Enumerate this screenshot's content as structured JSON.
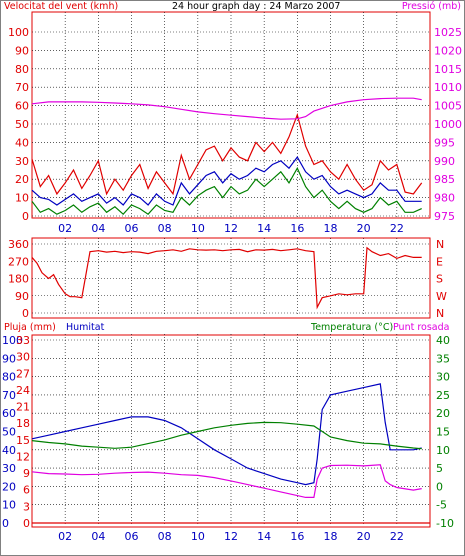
{
  "header": {
    "left_title": "Velocitat del vent (kmh)",
    "center_title": "24 hour graph day : 24 Marzo 2007",
    "right_title": "Pressió (mb)",
    "legend_rain": "Pluja (mm)",
    "legend_humidity": "Humitat",
    "legend_temperature": "Temperatura (°C)",
    "legend_dewpoint": "Punt rosada"
  },
  "colors": {
    "wind_gust": "#e00000",
    "wind_avg": "#0000c0",
    "wind_low": "#008000",
    "pressure": "#e000e0",
    "direction": "#e00000",
    "humidity": "#0000c0",
    "temperature": "#008000",
    "dewpoint": "#e000e0",
    "rain": "#e00000",
    "grid": "#000000",
    "frame": "#808080"
  },
  "chart_data": [
    {
      "type": "line",
      "name": "wind_pressure",
      "x_ticks": [
        "02",
        "04",
        "06",
        "08",
        "10",
        "12",
        "14",
        "16",
        "18",
        "20",
        "22"
      ],
      "x_range_hours": [
        0,
        24
      ],
      "ylim_left": [
        0,
        100
      ],
      "yticks_left": [
        "0",
        "10",
        "20",
        "30",
        "40",
        "50",
        "60",
        "70",
        "80",
        "90",
        "100"
      ],
      "ylim_right": [
        975,
        1025
      ],
      "yticks_right": [
        "975",
        "980",
        "985",
        "990",
        "995",
        "1000",
        "1005",
        "1010",
        "1015",
        "1020",
        "1025"
      ],
      "series": [
        {
          "key": "gust",
          "x": [
            0.0,
            0.5,
            1.0,
            1.5,
            2.0,
            2.5,
            3.0,
            3.5,
            4.0,
            4.5,
            5.0,
            5.5,
            6.0,
            6.5,
            7.0,
            7.5,
            8.0,
            8.5,
            9.0,
            9.5,
            10.0,
            10.5,
            11.0,
            11.5,
            12.0,
            12.5,
            13.0,
            13.5,
            14.0,
            14.5,
            15.0,
            15.5,
            16.0,
            16.5,
            17.0,
            17.5,
            18.0,
            18.5,
            19.0,
            19.5,
            20.0,
            20.5,
            21.0,
            21.5,
            22.0,
            22.5,
            23.0,
            23.5
          ],
          "values": [
            31,
            16,
            22,
            12,
            18,
            25,
            15,
            22,
            30,
            12,
            20,
            14,
            22,
            28,
            15,
            24,
            18,
            12,
            33,
            20,
            28,
            36,
            38,
            30,
            37,
            32,
            30,
            40,
            35,
            40,
            34,
            43,
            55,
            38,
            28,
            30,
            24,
            20,
            28,
            20,
            14,
            17,
            30,
            25,
            28,
            13,
            12,
            18
          ]
        },
        {
          "key": "avg",
          "x": [
            0.0,
            0.5,
            1.0,
            1.5,
            2.0,
            2.5,
            3.0,
            3.5,
            4.0,
            4.5,
            5.0,
            5.5,
            6.0,
            6.5,
            7.0,
            7.5,
            8.0,
            8.5,
            9.0,
            9.5,
            10.0,
            10.5,
            11.0,
            11.5,
            12.0,
            12.5,
            13.0,
            13.5,
            14.0,
            14.5,
            15.0,
            15.5,
            16.0,
            16.5,
            17.0,
            17.5,
            18.0,
            18.5,
            19.0,
            19.5,
            20.0,
            20.5,
            21.0,
            21.5,
            22.0,
            22.5,
            23.0,
            23.5
          ],
          "values": [
            14,
            10,
            9,
            6,
            9,
            12,
            8,
            10,
            12,
            7,
            10,
            6,
            12,
            10,
            6,
            12,
            8,
            6,
            18,
            12,
            17,
            22,
            24,
            18,
            23,
            20,
            22,
            26,
            24,
            28,
            30,
            26,
            32,
            24,
            20,
            22,
            16,
            12,
            14,
            12,
            10,
            12,
            18,
            14,
            14,
            8,
            8,
            8
          ]
        },
        {
          "key": "low",
          "x": [
            0.0,
            0.5,
            1.0,
            1.5,
            2.0,
            2.5,
            3.0,
            3.5,
            4.0,
            4.5,
            5.0,
            5.5,
            6.0,
            6.5,
            7.0,
            7.5,
            8.0,
            8.5,
            9.0,
            9.5,
            10.0,
            10.5,
            11.0,
            11.5,
            12.0,
            12.5,
            13.0,
            13.5,
            14.0,
            14.5,
            15.0,
            15.5,
            16.0,
            16.5,
            17.0,
            17.5,
            18.0,
            18.5,
            19.0,
            19.5,
            20.0,
            20.5,
            21.0,
            21.5,
            22.0,
            22.5,
            23.0,
            23.5
          ],
          "values": [
            8,
            2,
            4,
            1,
            3,
            6,
            2,
            5,
            7,
            2,
            5,
            1,
            6,
            4,
            1,
            6,
            3,
            2,
            10,
            6,
            11,
            14,
            16,
            10,
            16,
            12,
            14,
            20,
            16,
            20,
            24,
            18,
            26,
            16,
            10,
            14,
            8,
            4,
            8,
            4,
            2,
            4,
            10,
            6,
            8,
            2,
            2,
            4
          ]
        },
        {
          "key": "pressure",
          "x": [
            0.0,
            1.0,
            2.0,
            3.0,
            4.0,
            5.0,
            6.0,
            7.0,
            8.0,
            9.0,
            10.0,
            11.0,
            12.0,
            13.0,
            14.0,
            15.0,
            16.0,
            16.5,
            17.0,
            18.0,
            19.0,
            20.0,
            21.0,
            22.0,
            23.0,
            23.5
          ],
          "values": [
            1005.5,
            1006.0,
            1006.0,
            1006.0,
            1005.9,
            1005.7,
            1005.5,
            1005.2,
            1004.7,
            1004.0,
            1003.3,
            1002.8,
            1002.4,
            1002.0,
            1001.6,
            1001.3,
            1001.4,
            1002.0,
            1003.5,
            1005.0,
            1006.0,
            1006.6,
            1006.9,
            1007.0,
            1007.0,
            1006.6
          ]
        }
      ]
    },
    {
      "type": "line",
      "name": "wind_direction",
      "x_ticks": [
        "02",
        "04",
        "06",
        "08",
        "10",
        "12",
        "14",
        "16",
        "18",
        "20",
        "22"
      ],
      "x_range_hours": [
        0,
        24
      ],
      "ylim": [
        0,
        360
      ],
      "yticks_left": [
        "0",
        "90",
        "180",
        "270",
        "360"
      ],
      "yticks_right": [
        "N",
        "W",
        "S",
        "E",
        "N"
      ],
      "series": [
        {
          "key": "direction",
          "x": [
            0.0,
            0.3,
            0.6,
            1.0,
            1.3,
            1.6,
            2.0,
            2.3,
            2.6,
            3.0,
            3.5,
            4.0,
            4.5,
            5.0,
            5.5,
            6.0,
            6.5,
            7.0,
            7.5,
            8.0,
            8.5,
            9.0,
            9.5,
            10.0,
            10.5,
            11.0,
            11.5,
            12.0,
            12.5,
            13.0,
            13.5,
            14.0,
            14.5,
            15.0,
            15.5,
            16.0,
            16.5,
            17.0,
            17.2,
            17.5,
            18.0,
            18.5,
            19.0,
            19.5,
            20.0,
            20.2,
            20.5,
            21.0,
            21.5,
            22.0,
            22.5,
            23.0,
            23.5
          ],
          "values": [
            290,
            260,
            210,
            180,
            200,
            150,
            100,
            85,
            85,
            80,
            320,
            325,
            318,
            322,
            315,
            320,
            318,
            310,
            322,
            325,
            330,
            322,
            335,
            330,
            328,
            330,
            325,
            330,
            332,
            320,
            330,
            328,
            332,
            325,
            330,
            335,
            325,
            320,
            30,
            80,
            90,
            100,
            95,
            100,
            100,
            340,
            320,
            300,
            310,
            285,
            300,
            290,
            290
          ]
        }
      ]
    },
    {
      "type": "line",
      "name": "humidity_temperature",
      "x_ticks": [
        "02",
        "04",
        "06",
        "08",
        "10",
        "12",
        "14",
        "16",
        "18",
        "20",
        "22"
      ],
      "x_range_hours": [
        0,
        24
      ],
      "ylim_rain": [
        0,
        33
      ],
      "yticks_rain": [
        "0",
        "3",
        "6",
        "9",
        "12",
        "15",
        "18",
        "21",
        "24",
        "27",
        "30",
        "33"
      ],
      "ylim_humidity": [
        0,
        100
      ],
      "yticks_humidity": [
        "0",
        "10",
        "20",
        "30",
        "40",
        "50",
        "60",
        "70",
        "80",
        "90",
        "100"
      ],
      "ylim_temp": [
        -10,
        40
      ],
      "yticks_temp": [
        "-10",
        "-5",
        "0",
        "5",
        "10",
        "15",
        "20",
        "25",
        "30",
        "35",
        "40"
      ],
      "series": [
        {
          "key": "humidity",
          "x": [
            0.0,
            1.0,
            2.0,
            3.0,
            4.0,
            5.0,
            6.0,
            7.0,
            8.0,
            9.0,
            10.0,
            11.0,
            12.0,
            13.0,
            14.0,
            15.0,
            16.0,
            16.5,
            17.0,
            17.2,
            17.5,
            18.0,
            19.0,
            20.0,
            21.0,
            21.3,
            21.6,
            22.0,
            23.0,
            23.5
          ],
          "values": [
            46,
            48,
            50,
            52,
            54,
            56,
            58,
            58,
            56,
            52,
            46,
            40,
            35,
            30,
            27,
            24,
            22,
            21,
            22,
            35,
            62,
            70,
            72,
            74,
            76,
            55,
            40,
            40,
            40,
            41
          ]
        },
        {
          "key": "temperature",
          "x": [
            0.0,
            1.0,
            2.0,
            3.0,
            4.0,
            5.0,
            6.0,
            7.0,
            8.0,
            9.0,
            10.0,
            11.0,
            12.0,
            13.0,
            14.0,
            15.0,
            16.0,
            17.0,
            18.0,
            19.0,
            20.0,
            21.0,
            22.0,
            23.0,
            23.5
          ],
          "values": [
            12.5,
            12.0,
            11.6,
            11.0,
            10.7,
            10.4,
            10.7,
            11.7,
            12.7,
            14.0,
            15.0,
            16.0,
            16.7,
            17.2,
            17.5,
            17.4,
            17.0,
            16.5,
            13.5,
            12.5,
            11.8,
            11.6,
            11.0,
            10.5,
            10.3
          ]
        },
        {
          "key": "dewpoint",
          "x": [
            0.0,
            1.0,
            2.0,
            3.0,
            4.0,
            5.0,
            6.0,
            7.0,
            8.0,
            9.0,
            10.0,
            11.0,
            12.0,
            13.0,
            14.0,
            15.0,
            16.0,
            16.5,
            17.0,
            17.2,
            17.5,
            18.0,
            19.0,
            20.0,
            21.0,
            21.3,
            21.6,
            22.0,
            23.0,
            23.5
          ],
          "values": [
            4.0,
            3.5,
            3.4,
            3.2,
            3.3,
            3.6,
            3.8,
            3.9,
            3.6,
            3.2,
            3.0,
            2.4,
            1.5,
            0.5,
            -0.5,
            -1.5,
            -2.5,
            -3.0,
            -3.0,
            2.0,
            5.0,
            5.7,
            5.8,
            5.6,
            5.9,
            1.5,
            0.5,
            -0.3,
            -1.0,
            -0.6
          ]
        },
        {
          "key": "rain",
          "x": [
            0,
            24
          ],
          "values": [
            0,
            0
          ]
        }
      ]
    }
  ]
}
